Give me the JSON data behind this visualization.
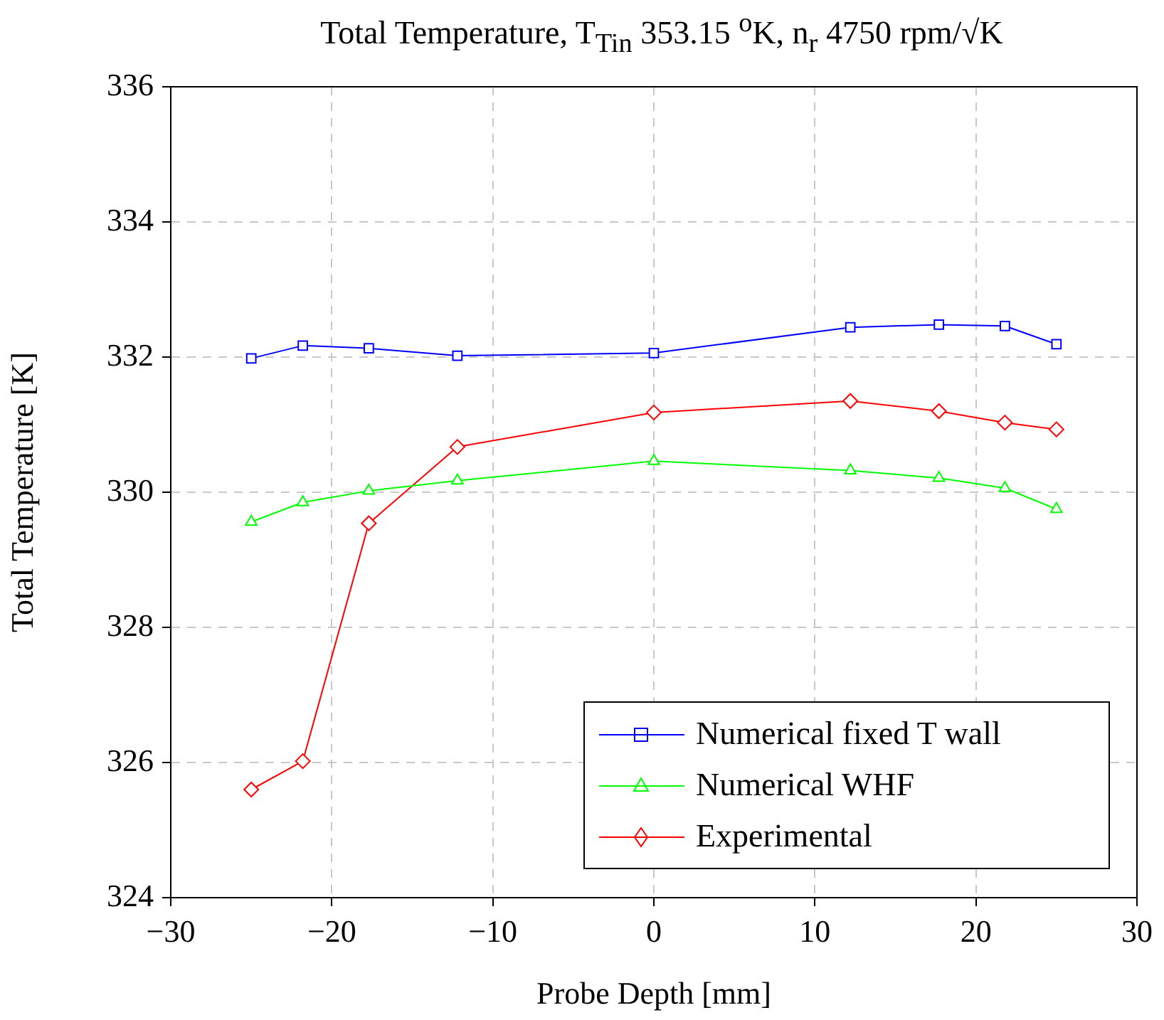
{
  "chart_data": {
    "type": "line",
    "title": "Total Temperature, T$_{Tin}$ 353.15 $^{o}$K, n$_{r}$ 4750 rpm/√K",
    "xlabel": "Probe Depth [mm]",
    "ylabel": "Total Temperature [K]",
    "x": [
      -25,
      -21.8,
      -17.7,
      -12.2,
      0,
      12.2,
      17.7,
      21.8,
      25
    ],
    "series": [
      {
        "name": "Numerical fixed T wall",
        "color": "#0000ff",
        "marker": "square",
        "values": [
          331.98,
          332.17,
          332.13,
          332.02,
          332.06,
          332.44,
          332.48,
          332.46,
          332.19
        ]
      },
      {
        "name": "Numerical WHF",
        "color": "#00ff00",
        "marker": "triangle",
        "values": [
          329.56,
          329.85,
          330.02,
          330.17,
          330.46,
          330.32,
          330.21,
          330.06,
          329.75
        ]
      },
      {
        "name": "Experimental",
        "color": "#ff0000",
        "marker": "diamond",
        "values": [
          325.6,
          326.02,
          329.54,
          330.67,
          331.18,
          331.35,
          331.2,
          331.03,
          330.93
        ]
      }
    ],
    "xlim": [
      -30,
      30
    ],
    "xticks": [
      -30,
      -20,
      -10,
      0,
      10,
      20,
      30
    ],
    "ylim": [
      324,
      336
    ],
    "yticks": [
      324,
      326,
      328,
      330,
      332,
      334,
      336
    ],
    "grid": true,
    "legend": "bottom right",
    "line_style": "solid"
  }
}
